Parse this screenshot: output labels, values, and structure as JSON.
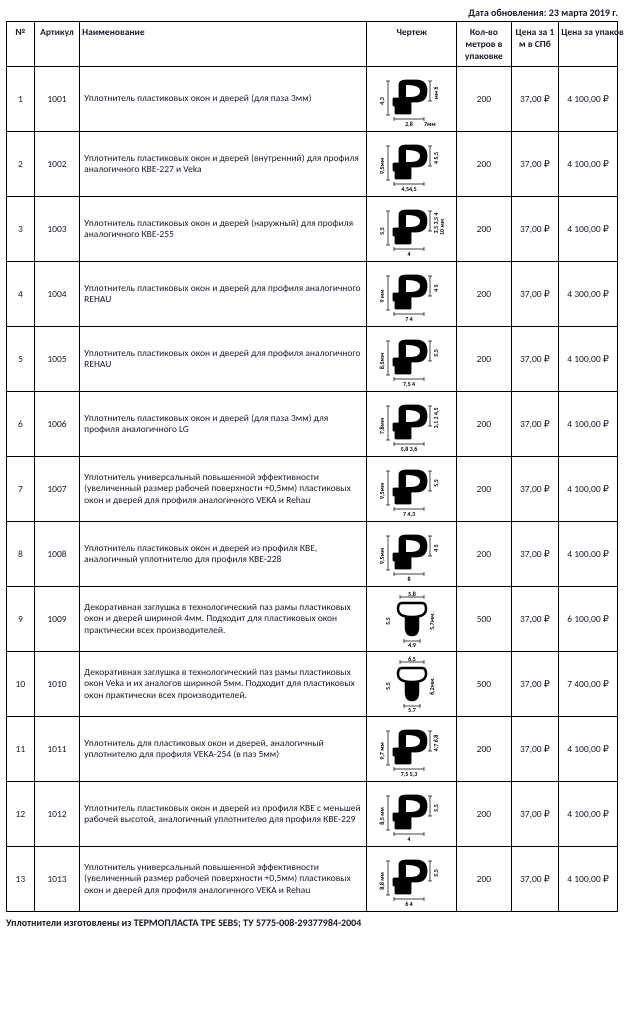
{
  "update_date": "Дата обновления: 23 марта 2019 г.",
  "headers": {
    "num": "№",
    "art": "Артикул",
    "name": "Наименование",
    "draw": "Чертеж",
    "qty": "Кол-во метров в упаковке",
    "price1": "Цена за 1 м в СПб",
    "price2": "Цена за упаковку в СПб"
  },
  "rows": [
    {
      "n": "1",
      "art": "1001",
      "name": "Уплотнитель пластиковых окон и дверей (для паза 3мм)",
      "qty": "200",
      "p1": "37,00 ₽",
      "p2": "4 100,00 ₽",
      "dims": {
        "w": "2,8",
        "w2": "7мм",
        "h": "4,3",
        "h2": "мм 6"
      }
    },
    {
      "n": "2",
      "art": "1002",
      "name": "Уплотнитель пластиковых окон и дверей (внутренний) для профиля аналогичного КВЕ-227 и Veka",
      "qty": "200",
      "p1": "37,00 ₽",
      "p2": "4 100,00 ₽",
      "dims": {
        "w": "4,54,5",
        "h": "9,5мм",
        "h2": "4  5,5"
      }
    },
    {
      "n": "3",
      "art": "1003",
      "name": "Уплотнитель пластиковых окон и дверей (наружный) для профиля аналогичного КВЕ-255",
      "qty": "200",
      "p1": "37,00 ₽",
      "p2": "4 100,00 ₽",
      "dims": {
        "w": "4",
        "h": "5,5",
        "h2": "3,5 3,5 4",
        "h3": "10 мм"
      }
    },
    {
      "n": "4",
      "art": "1004",
      "name": "Уплотнитель пластиковых окон и дверей для профиля аналогичного REHAU",
      "qty": "200",
      "p1": "37,00 ₽",
      "p2": "4 300,00 ₽",
      "dims": {
        "w": "7   4",
        "h": "9 мм",
        "h2": "4   5"
      }
    },
    {
      "n": "5",
      "art": "1005",
      "name": "Уплотнитель пластиковых окон и дверей для профиля аналогичного REHAU",
      "qty": "200",
      "p1": "37,00 ₽",
      "p2": "4 100,00 ₽",
      "dims": {
        "w": "7,5  4",
        "h": "8,5мм",
        "h2": "5,5"
      }
    },
    {
      "n": "6",
      "art": "1006",
      "name": "Уплотнитель пластиковых окон и дверей (для паза 3мм) для профиля аналогичного LG",
      "qty": "200",
      "p1": "37,00 ₽",
      "p2": "4 100,00 ₽",
      "dims": {
        "w": "5,8  3,6",
        "h": "7,8мм",
        "h2": "3,1 2  4,5"
      }
    },
    {
      "n": "7",
      "art": "1007",
      "name": "Уплотнитель универсальный повышенной эффективности (увеличенный размер рабочей поверхности +0,5мм) пластиковых окон и дверей для профиля аналогичного VEKA и Rehau",
      "qty": "200",
      "p1": "37,00 ₽",
      "p2": "4 100,00 ₽",
      "dims": {
        "w": "7  4,3",
        "h": "9,5мм",
        "h2": "5,5"
      }
    },
    {
      "n": "8",
      "art": "1008",
      "name": "Уплотнитель пластиковых окон и дверей из профиля КВЕ, аналогичный уплотнителю для профиля КВЕ-228",
      "qty": "200",
      "p1": "37,00 ₽",
      "p2": "4 100,00 ₽",
      "dims": {
        "w": "8",
        "h": "9,5мм",
        "h2": "4  5"
      }
    },
    {
      "n": "9",
      "art": "1009",
      "name": "Декоративная заглушка в технологический паз рамы пластиковых окон и дверей шириной 4мм. Подходит для пластиковых окон практически всех производителей.",
      "qty": "500",
      "p1": "37,00 ₽",
      "p2": "6 100,00 ₽",
      "dims": {
        "w": "4,9",
        "w2": "5,8",
        "h": "5,5",
        "h2": "5,7мм."
      }
    },
    {
      "n": "10",
      "art": "1010",
      "name": "Декоративная заглушка в технологический паз рамы пластиковых окон Veka и их аналогов шириной 5мм. Подходит для пластиковых окон практически всех производителей.",
      "qty": "500",
      "p1": "37,00 ₽",
      "p2": "7 400,00 ₽",
      "dims": {
        "w": "5,7",
        "w2": "6,5",
        "h": "5,5",
        "h2": "6,2мм."
      }
    },
    {
      "n": "11",
      "art": "1011",
      "name": "Уплотнитель для пластиковых окон и дверей, аналогичный уплотнителю для профиля VEKA-254 (в паз 5мм)",
      "qty": "200",
      "p1": "37,00 ₽",
      "p2": "4 100,00 ₽",
      "dims": {
        "w": "7,5  5,3",
        "h": "9,7 мм",
        "h2": "4,7 6,8"
      }
    },
    {
      "n": "12",
      "art": "1012",
      "name": "Уплотнитель пластиковых окон и дверей из профиля КВЕ с меньшей рабочей высотой, аналогичный уплотнителю для профиля КВЕ-229",
      "qty": "200",
      "p1": "37,00 ₽",
      "p2": "4 100,00 ₽",
      "dims": {
        "w": "4",
        "h": "8,5 мм",
        "h2": "5,5"
      }
    },
    {
      "n": "13",
      "art": "1013",
      "name": "Уплотнитель универсальный повышенной эффективности (увеличенный размер рабочей поверхности +0,5мм) пластиковых окон и дверей для профиля аналогичного VEKA и Rehau",
      "qty": "200",
      "p1": "37,00 ₽",
      "p2": "4 100,00 ₽",
      "dims": {
        "w": "6   4",
        "h": "8,8 мм",
        "h2": "5,5"
      }
    }
  ],
  "footnote": "Уплотнители изготовлены из ТЕРМОПЛАСТА TPE SEBS; ТУ 5775-008-29377984-2004",
  "styling": {
    "border_color": "#000000",
    "text_color": "#1a1a2e",
    "background": "#ffffff",
    "header_fontsize": 10,
    "cell_fontsize": 9.5,
    "drawing_stroke": "#000000",
    "drawing_stroke_width": 2.5,
    "dim_font": 6
  }
}
